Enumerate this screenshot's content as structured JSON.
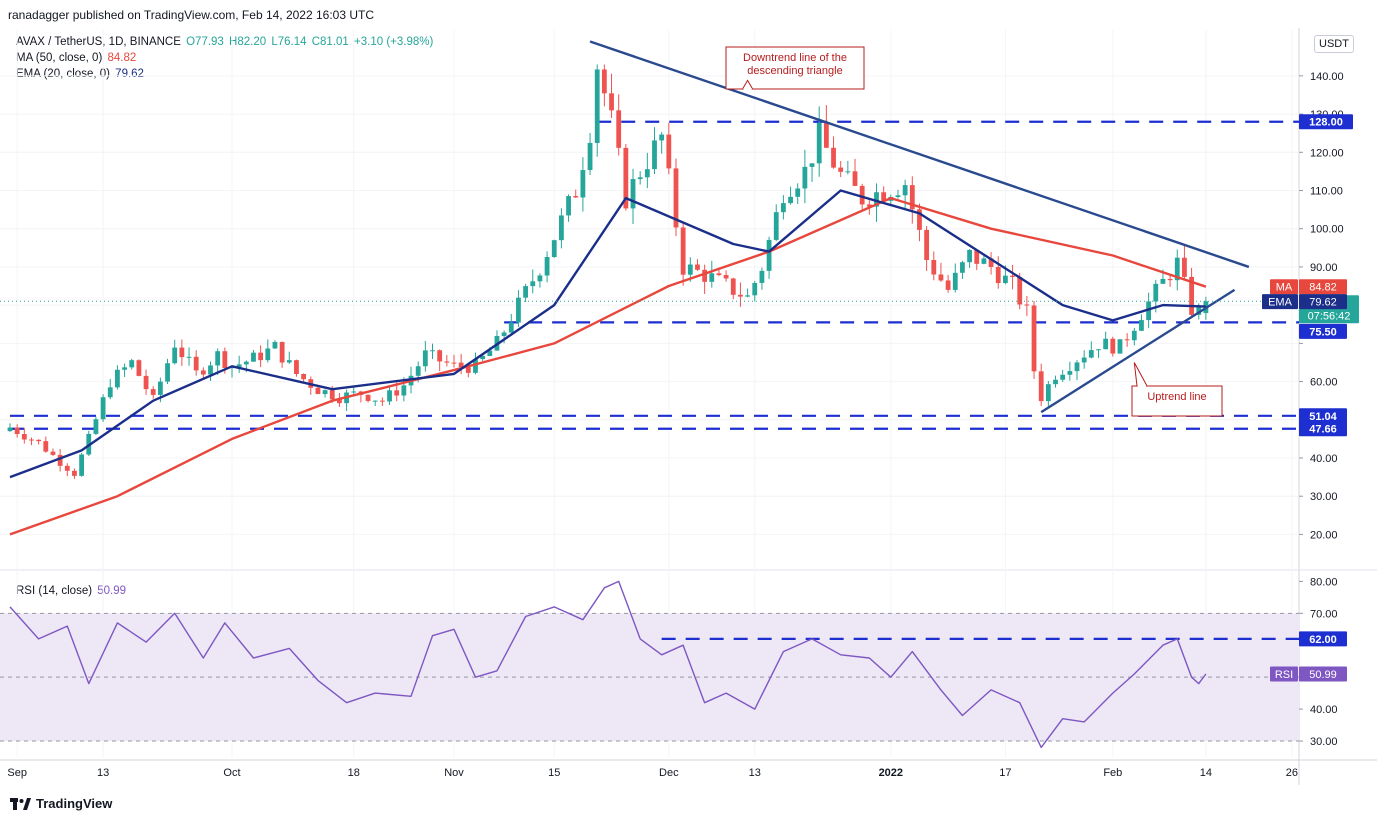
{
  "caption": "ranadagger published on TradingView.com, Feb 14, 2022 16:03 UTC",
  "legend": {
    "symbol": "AVAX / TetherUS, 1D, BINANCE",
    "open": "O77.93",
    "high": "H82.20",
    "low": "L76.14",
    "close": "C81.01",
    "change": "+3.10 (+3.98%)",
    "ma_label": "MA (50, close, 0)",
    "ma_value": "84.82",
    "ema_label": "EMA (20, close, 0)",
    "ema_value": "79.62",
    "rsi_label": "RSI (14, close)",
    "rsi_value": "50.99"
  },
  "currency_button": "USDT",
  "branding": "TradingView",
  "colors": {
    "up": "#26a69a",
    "down": "#ef5350",
    "ma": "#e8473d",
    "ema": "#1a2e8a",
    "trend": "#2a4a8f",
    "level": "#1d2fd0",
    "rsi_line": "#7e57c2",
    "rsi_band": "#ede7f6",
    "callout": "#b71c1c"
  },
  "chart_data": [
    {
      "type": "candlestick",
      "title": "AVAX / TetherUS, 1D, BINANCE",
      "price_axis": {
        "ylim": [
          12,
          152
        ],
        "ticks": [
          20,
          30,
          40,
          50,
          60,
          70,
          80,
          90,
          100,
          110,
          120,
          130,
          140
        ],
        "tick_labels": [
          "20.00",
          "30.00",
          "40.00",
          "",
          "60.00",
          "",
          "",
          "90.00",
          "100.00",
          "110.00",
          "120.00",
          "130.00",
          "140.00"
        ]
      },
      "time_axis": {
        "start": "2021-08-31",
        "end": "2022-02-27",
        "labels": [
          {
            "date": "2021-09-01",
            "text": "Sep"
          },
          {
            "date": "2021-09-13",
            "text": "13"
          },
          {
            "date": "2021-10-01",
            "text": "Oct"
          },
          {
            "date": "2021-10-18",
            "text": "18"
          },
          {
            "date": "2021-11-01",
            "text": "Nov"
          },
          {
            "date": "2021-11-15",
            "text": "15"
          },
          {
            "date": "2021-12-01",
            "text": "Dec"
          },
          {
            "date": "2021-12-13",
            "text": "13"
          },
          {
            "date": "2022-01-01",
            "text": "2022"
          },
          {
            "date": "2022-01-17",
            "text": "17"
          },
          {
            "date": "2022-02-01",
            "text": "Feb"
          },
          {
            "date": "2022-02-14",
            "text": "14"
          },
          {
            "date": "2022-02-26",
            "text": "26"
          }
        ]
      },
      "closes": [
        {
          "date": "2021-08-31",
          "value": 48
        },
        {
          "date": "2021-09-04",
          "value": 44
        },
        {
          "date": "2021-09-07",
          "value": 39
        },
        {
          "date": "2021-09-09",
          "value": 36
        },
        {
          "date": "2021-09-11",
          "value": 45
        },
        {
          "date": "2021-09-14",
          "value": 60
        },
        {
          "date": "2021-09-17",
          "value": 65
        },
        {
          "date": "2021-09-20",
          "value": 55
        },
        {
          "date": "2021-09-23",
          "value": 70
        },
        {
          "date": "2021-09-26",
          "value": 62
        },
        {
          "date": "2021-09-29",
          "value": 67
        },
        {
          "date": "2021-10-01",
          "value": 64
        },
        {
          "date": "2021-10-04",
          "value": 66
        },
        {
          "date": "2021-10-07",
          "value": 69
        },
        {
          "date": "2021-10-10",
          "value": 62
        },
        {
          "date": "2021-10-13",
          "value": 58
        },
        {
          "date": "2021-10-16",
          "value": 56
        },
        {
          "date": "2021-10-19",
          "value": 57
        },
        {
          "date": "2021-10-22",
          "value": 55
        },
        {
          "date": "2021-10-25",
          "value": 59
        },
        {
          "date": "2021-10-28",
          "value": 67
        },
        {
          "date": "2021-11-01",
          "value": 64
        },
        {
          "date": "2021-11-04",
          "value": 64
        },
        {
          "date": "2021-11-07",
          "value": 70
        },
        {
          "date": "2021-11-10",
          "value": 80
        },
        {
          "date": "2021-11-13",
          "value": 90
        },
        {
          "date": "2021-11-16",
          "value": 102
        },
        {
          "date": "2021-11-18",
          "value": 110
        },
        {
          "date": "2021-11-20",
          "value": 126
        },
        {
          "date": "2021-11-21",
          "value": 143
        },
        {
          "date": "2021-11-23",
          "value": 128
        },
        {
          "date": "2021-11-25",
          "value": 108
        },
        {
          "date": "2021-11-27",
          "value": 115
        },
        {
          "date": "2021-11-30",
          "value": 124
        },
        {
          "date": "2021-12-03",
          "value": 90
        },
        {
          "date": "2021-12-06",
          "value": 88
        },
        {
          "date": "2021-12-09",
          "value": 85
        },
        {
          "date": "2021-12-12",
          "value": 82
        },
        {
          "date": "2021-12-14",
          "value": 90
        },
        {
          "date": "2021-12-17",
          "value": 110
        },
        {
          "date": "2021-12-20",
          "value": 115
        },
        {
          "date": "2021-12-22",
          "value": 124
        },
        {
          "date": "2021-12-25",
          "value": 114
        },
        {
          "date": "2021-12-28",
          "value": 108
        },
        {
          "date": "2021-12-31",
          "value": 110
        },
        {
          "date": "2022-01-03",
          "value": 112
        },
        {
          "date": "2022-01-06",
          "value": 92
        },
        {
          "date": "2022-01-09",
          "value": 84
        },
        {
          "date": "2022-01-12",
          "value": 93
        },
        {
          "date": "2022-01-15",
          "value": 90
        },
        {
          "date": "2022-01-18",
          "value": 85
        },
        {
          "date": "2022-01-20",
          "value": 78
        },
        {
          "date": "2022-01-21",
          "value": 63
        },
        {
          "date": "2022-01-22",
          "value": 56
        },
        {
          "date": "2022-01-24",
          "value": 62
        },
        {
          "date": "2022-01-27",
          "value": 66
        },
        {
          "date": "2022-01-30",
          "value": 70
        },
        {
          "date": "2022-02-02",
          "value": 69
        },
        {
          "date": "2022-02-05",
          "value": 78
        },
        {
          "date": "2022-02-08",
          "value": 86
        },
        {
          "date": "2022-02-10",
          "value": 91
        },
        {
          "date": "2022-02-12",
          "value": 79
        },
        {
          "date": "2022-02-13",
          "value": 78
        },
        {
          "date": "2022-02-14",
          "value": 81.01
        }
      ],
      "ma50": [
        {
          "date": "2021-08-31",
          "value": 20
        },
        {
          "date": "2021-09-15",
          "value": 30
        },
        {
          "date": "2021-10-01",
          "value": 45
        },
        {
          "date": "2021-10-15",
          "value": 55
        },
        {
          "date": "2021-11-01",
          "value": 63
        },
        {
          "date": "2021-11-15",
          "value": 70
        },
        {
          "date": "2021-12-01",
          "value": 85
        },
        {
          "date": "2021-12-15",
          "value": 94
        },
        {
          "date": "2022-01-01",
          "value": 108
        },
        {
          "date": "2022-01-15",
          "value": 100
        },
        {
          "date": "2022-02-01",
          "value": 93
        },
        {
          "date": "2022-02-14",
          "value": 84.82
        }
      ],
      "ema20": [
        {
          "date": "2021-08-31",
          "value": 35
        },
        {
          "date": "2021-09-10",
          "value": 42
        },
        {
          "date": "2021-09-20",
          "value": 55
        },
        {
          "date": "2021-10-01",
          "value": 64
        },
        {
          "date": "2021-10-15",
          "value": 58
        },
        {
          "date": "2021-11-01",
          "value": 62
        },
        {
          "date": "2021-11-15",
          "value": 80
        },
        {
          "date": "2021-11-25",
          "value": 108
        },
        {
          "date": "2021-12-10",
          "value": 96
        },
        {
          "date": "2021-12-15",
          "value": 94
        },
        {
          "date": "2021-12-25",
          "value": 110
        },
        {
          "date": "2022-01-05",
          "value": 104
        },
        {
          "date": "2022-01-15",
          "value": 92
        },
        {
          "date": "2022-01-25",
          "value": 80
        },
        {
          "date": "2022-02-01",
          "value": 76
        },
        {
          "date": "2022-02-08",
          "value": 80
        },
        {
          "date": "2022-02-14",
          "value": 79.62
        }
      ],
      "horizontal_levels": [
        {
          "value": 128.0,
          "label": "128.00",
          "from": "2021-11-21"
        },
        {
          "value": 75.5,
          "label": "75.50",
          "from": "2021-11-08"
        },
        {
          "value": 51.04,
          "label": "51.04",
          "from": "2021-08-31"
        },
        {
          "value": 47.66,
          "label": "47.66",
          "from": "2021-08-31"
        }
      ],
      "trend_lines": [
        {
          "name": "Downtrend line of the descending triangle",
          "from": {
            "date": "2021-11-20",
            "value": 149
          },
          "to": {
            "date": "2022-02-20",
            "value": 90
          }
        },
        {
          "name": "Uptrend line",
          "from": {
            "date": "2022-01-22",
            "value": 52
          },
          "to": {
            "date": "2022-02-18",
            "value": 84
          }
        }
      ],
      "annotations": [
        {
          "text": "Downtrend line of the descending triangle",
          "anchor_date": "2021-12-12",
          "anchor_value": 132
        },
        {
          "text": "Uptrend line",
          "anchor_date": "2022-02-04",
          "anchor_value": 65
        }
      ],
      "axis_badges": [
        {
          "text": "128.00",
          "style": "level"
        },
        {
          "text": "MA",
          "value_text": "84.82",
          "style": "ma"
        },
        {
          "text": "81.01",
          "sub": "07:56:42",
          "style": "price"
        },
        {
          "text": "EMA",
          "value_text": "79.62",
          "style": "ema"
        },
        {
          "text": "75.50",
          "style": "level"
        },
        {
          "text": "51.04",
          "style": "level"
        },
        {
          "text": "47.66",
          "style": "level"
        }
      ]
    },
    {
      "type": "line",
      "title": "RSI (14, close)",
      "ylim": [
        25,
        82
      ],
      "ticks": [
        30,
        40,
        50,
        60,
        70,
        80
      ],
      "tick_labels": [
        "30.00",
        "40.00",
        "",
        "",
        "70.00",
        "80.00"
      ],
      "band": [
        30,
        70
      ],
      "midline": 50,
      "levels": [
        {
          "value": 62.0,
          "label": "62.00",
          "from": "2021-11-30"
        }
      ],
      "series": [
        {
          "date": "2021-08-31",
          "value": 72
        },
        {
          "date": "2021-09-04",
          "value": 62
        },
        {
          "date": "2021-09-08",
          "value": 66
        },
        {
          "date": "2021-09-11",
          "value": 48
        },
        {
          "date": "2021-09-15",
          "value": 67
        },
        {
          "date": "2021-09-19",
          "value": 61
        },
        {
          "date": "2021-09-23",
          "value": 70
        },
        {
          "date": "2021-09-27",
          "value": 56
        },
        {
          "date": "2021-09-30",
          "value": 67
        },
        {
          "date": "2021-10-04",
          "value": 56
        },
        {
          "date": "2021-10-09",
          "value": 59
        },
        {
          "date": "2021-10-13",
          "value": 49
        },
        {
          "date": "2021-10-17",
          "value": 42
        },
        {
          "date": "2021-10-21",
          "value": 45
        },
        {
          "date": "2021-10-26",
          "value": 44
        },
        {
          "date": "2021-10-29",
          "value": 63
        },
        {
          "date": "2021-11-01",
          "value": 65
        },
        {
          "date": "2021-11-04",
          "value": 50
        },
        {
          "date": "2021-11-07",
          "value": 52
        },
        {
          "date": "2021-11-11",
          "value": 69
        },
        {
          "date": "2021-11-15",
          "value": 72
        },
        {
          "date": "2021-11-19",
          "value": 68
        },
        {
          "date": "2021-11-22",
          "value": 78
        },
        {
          "date": "2021-11-24",
          "value": 80
        },
        {
          "date": "2021-11-27",
          "value": 62
        },
        {
          "date": "2021-11-30",
          "value": 57
        },
        {
          "date": "2021-12-03",
          "value": 60
        },
        {
          "date": "2021-12-06",
          "value": 42
        },
        {
          "date": "2021-12-09",
          "value": 45
        },
        {
          "date": "2021-12-13",
          "value": 40
        },
        {
          "date": "2021-12-17",
          "value": 58
        },
        {
          "date": "2021-12-21",
          "value": 62
        },
        {
          "date": "2021-12-25",
          "value": 57
        },
        {
          "date": "2021-12-29",
          "value": 56
        },
        {
          "date": "2022-01-01",
          "value": 50
        },
        {
          "date": "2022-01-04",
          "value": 58
        },
        {
          "date": "2022-01-08",
          "value": 46
        },
        {
          "date": "2022-01-11",
          "value": 38
        },
        {
          "date": "2022-01-15",
          "value": 46
        },
        {
          "date": "2022-01-19",
          "value": 42
        },
        {
          "date": "2022-01-22",
          "value": 28
        },
        {
          "date": "2022-01-25",
          "value": 37
        },
        {
          "date": "2022-01-28",
          "value": 36
        },
        {
          "date": "2022-02-01",
          "value": 45
        },
        {
          "date": "2022-02-04",
          "value": 51
        },
        {
          "date": "2022-02-08",
          "value": 60
        },
        {
          "date": "2022-02-10",
          "value": 62
        },
        {
          "date": "2022-02-12",
          "value": 50
        },
        {
          "date": "2022-02-13",
          "value": 48
        },
        {
          "date": "2022-02-14",
          "value": 50.99
        }
      ]
    }
  ]
}
